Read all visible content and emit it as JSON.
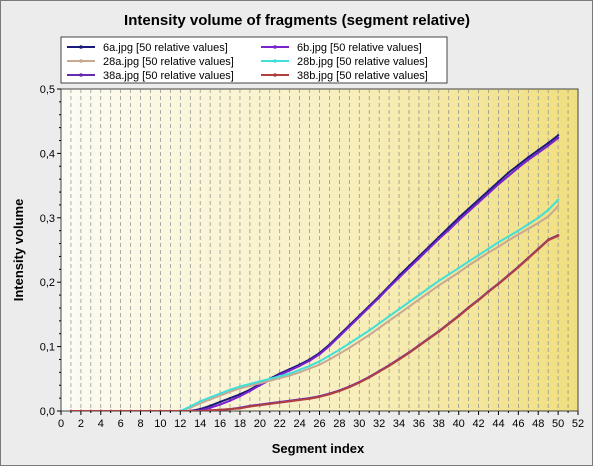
{
  "chart_data": {
    "type": "line",
    "title": "Intensity volume of fragments (segment relative)",
    "xlabel": "Segment index",
    "ylabel": "Intensity volume",
    "xlim": [
      0,
      52
    ],
    "ylim": [
      0,
      0.5
    ],
    "xticks": [
      "0",
      "2",
      "4",
      "6",
      "8",
      "10",
      "12",
      "14",
      "16",
      "18",
      "20",
      "22",
      "24",
      "26",
      "28",
      "30",
      "32",
      "34",
      "36",
      "38",
      "40",
      "42",
      "44",
      "46",
      "48",
      "50",
      "52"
    ],
    "yticks": [
      "0,0",
      "0,1",
      "0,2",
      "0,3",
      "0,4",
      "0,5"
    ],
    "grid": "vertical dashed",
    "legend": "top-left",
    "x": [
      1,
      2,
      3,
      4,
      5,
      6,
      7,
      8,
      9,
      10,
      11,
      12,
      13,
      14,
      15,
      16,
      17,
      18,
      19,
      20,
      21,
      22,
      23,
      24,
      25,
      26,
      27,
      28,
      29,
      30,
      31,
      32,
      33,
      34,
      35,
      36,
      37,
      38,
      39,
      40,
      41,
      42,
      43,
      44,
      45,
      46,
      47,
      48,
      49,
      50
    ],
    "series": [
      {
        "name": "6a.jpg [50 relative values]",
        "color": "#1a1a7a",
        "values": [
          0,
          0,
          0,
          0,
          0,
          0,
          0,
          0,
          0,
          0,
          0,
          0,
          0,
          0.003,
          0.008,
          0.014,
          0.02,
          0.026,
          0.033,
          0.042,
          0.05,
          0.058,
          0.065,
          0.072,
          0.08,
          0.09,
          0.103,
          0.118,
          0.133,
          0.148,
          0.163,
          0.178,
          0.194,
          0.21,
          0.225,
          0.24,
          0.255,
          0.27,
          0.285,
          0.3,
          0.314,
          0.328,
          0.342,
          0.356,
          0.37,
          0.382,
          0.394,
          0.405,
          0.416,
          0.428
        ]
      },
      {
        "name": "6b.jpg [50 relative values]",
        "color": "#7a22cc",
        "values": [
          0,
          0,
          0,
          0,
          0,
          0,
          0,
          0,
          0,
          0,
          0,
          0,
          0,
          0.001,
          0.005,
          0.01,
          0.016,
          0.023,
          0.031,
          0.04,
          0.048,
          0.056,
          0.063,
          0.07,
          0.078,
          0.088,
          0.101,
          0.116,
          0.131,
          0.146,
          0.161,
          0.176,
          0.192,
          0.207,
          0.222,
          0.237,
          0.252,
          0.267,
          0.281,
          0.296,
          0.31,
          0.324,
          0.338,
          0.352,
          0.365,
          0.378,
          0.39,
          0.401,
          0.412,
          0.424
        ]
      },
      {
        "name": "28a.jpg [50 relative values]",
        "color": "#c8a890",
        "values": [
          0,
          0,
          0,
          0,
          0,
          0,
          0,
          0,
          0,
          0,
          0,
          0,
          0.005,
          0.012,
          0.018,
          0.024,
          0.03,
          0.035,
          0.039,
          0.043,
          0.047,
          0.051,
          0.055,
          0.06,
          0.066,
          0.072,
          0.08,
          0.089,
          0.098,
          0.108,
          0.118,
          0.129,
          0.14,
          0.151,
          0.162,
          0.173,
          0.184,
          0.195,
          0.205,
          0.215,
          0.226,
          0.236,
          0.246,
          0.255,
          0.265,
          0.274,
          0.283,
          0.292,
          0.302,
          0.318
        ]
      },
      {
        "name": "28b.jpg [50 relative values]",
        "color": "#40e0d8",
        "values": [
          0,
          0,
          0,
          0,
          0,
          0,
          0,
          0,
          0,
          0,
          0,
          0,
          0.007,
          0.015,
          0.021,
          0.027,
          0.033,
          0.038,
          0.042,
          0.046,
          0.05,
          0.054,
          0.058,
          0.064,
          0.07,
          0.077,
          0.086,
          0.095,
          0.105,
          0.115,
          0.125,
          0.136,
          0.147,
          0.158,
          0.169,
          0.18,
          0.191,
          0.202,
          0.212,
          0.222,
          0.232,
          0.242,
          0.252,
          0.262,
          0.271,
          0.28,
          0.29,
          0.3,
          0.312,
          0.328
        ]
      },
      {
        "name": "38a.jpg [50 relative values]",
        "color": "#6a2ab0",
        "values": [
          0,
          0,
          0,
          0,
          0,
          0,
          0,
          0,
          0,
          0,
          0,
          0,
          0,
          0,
          0.001,
          0.002,
          0.003,
          0.005,
          0.008,
          0.01,
          0.012,
          0.014,
          0.016,
          0.018,
          0.02,
          0.023,
          0.027,
          0.032,
          0.038,
          0.045,
          0.053,
          0.062,
          0.071,
          0.081,
          0.091,
          0.102,
          0.113,
          0.124,
          0.136,
          0.148,
          0.161,
          0.173,
          0.186,
          0.198,
          0.211,
          0.224,
          0.238,
          0.252,
          0.266,
          0.273
        ]
      },
      {
        "name": "38b.jpg [50 relative values]",
        "color": "#b04040",
        "values": [
          0,
          0,
          0,
          0,
          0,
          0,
          0,
          0,
          0,
          0,
          0,
          0,
          0,
          0,
          0.001,
          0.002,
          0.003,
          0.004,
          0.007,
          0.009,
          0.011,
          0.013,
          0.015,
          0.017,
          0.019,
          0.022,
          0.026,
          0.031,
          0.037,
          0.044,
          0.052,
          0.061,
          0.07,
          0.08,
          0.09,
          0.101,
          0.112,
          0.123,
          0.135,
          0.147,
          0.16,
          0.172,
          0.185,
          0.197,
          0.21,
          0.223,
          0.237,
          0.251,
          0.265,
          0.272
        ]
      }
    ]
  }
}
